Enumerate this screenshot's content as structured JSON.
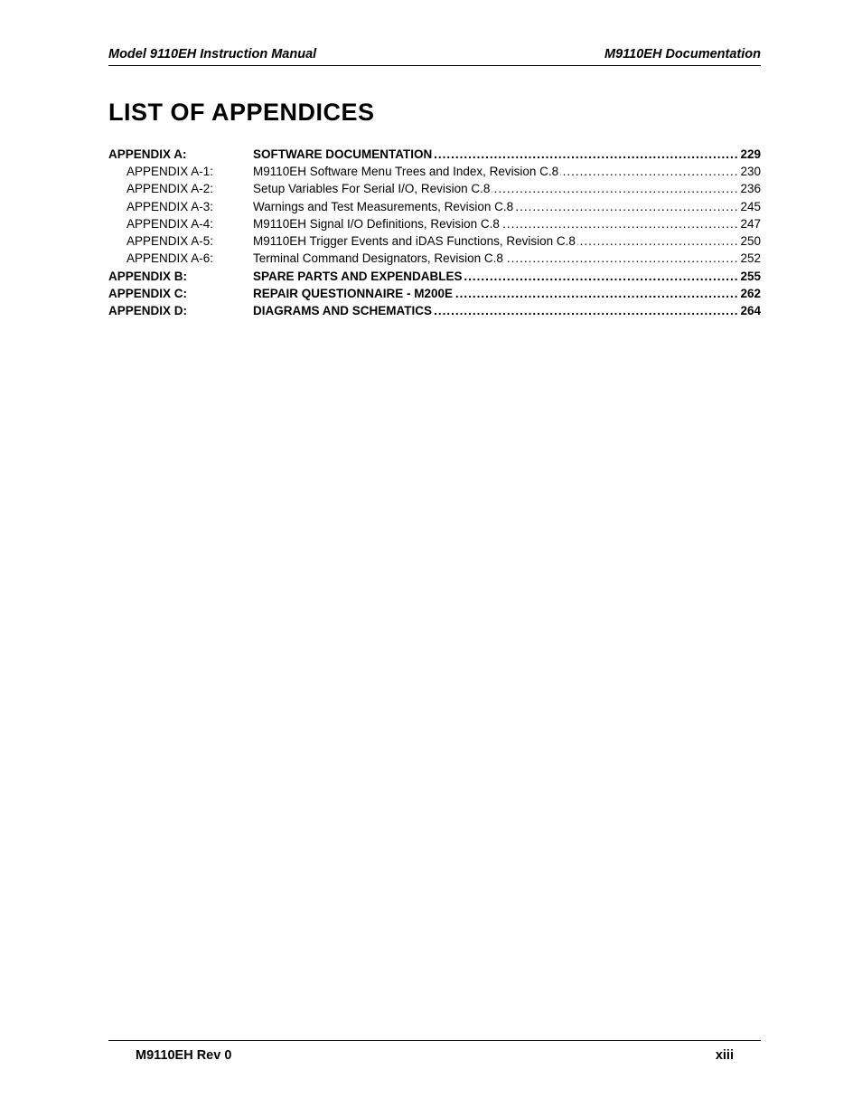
{
  "header": {
    "left": "Model 9110EH Instruction Manual",
    "right": "M9110EH Documentation"
  },
  "title": "LIST OF APPENDICES",
  "toc": [
    {
      "label": "APPENDIX A:",
      "text": "SOFTWARE DOCUMENTATION",
      "page": "229",
      "bold": true,
      "sub": false
    },
    {
      "label": "APPENDIX A-1:",
      "text": "M9110EH Software Menu Trees and Index, Revision C.8",
      "page": "230",
      "bold": false,
      "sub": true
    },
    {
      "label": "APPENDIX A-2:",
      "text": "Setup Variables For Serial I/O, Revision C.8",
      "page": "236",
      "bold": false,
      "sub": true
    },
    {
      "label": "APPENDIX A-3:",
      "text": "Warnings and Test Measurements, Revision C.8",
      "page": "245",
      "bold": false,
      "sub": true
    },
    {
      "label": "APPENDIX A-4:",
      "text": "M9110EH Signal I/O Definitions, Revision C.8",
      "page": "247",
      "bold": false,
      "sub": true
    },
    {
      "label": "APPENDIX A-5:",
      "text": "M9110EH Trigger Events and iDAS Functions, Revision C.8",
      "page": "250",
      "bold": false,
      "sub": true
    },
    {
      "label": "APPENDIX A-6:",
      "text": "Terminal Command Designators, Revision C.8",
      "page": "252",
      "bold": false,
      "sub": true
    },
    {
      "label": "APPENDIX B:",
      "text": "SPARE PARTS AND EXPENDABLES",
      "page": "255",
      "bold": true,
      "sub": false
    },
    {
      "label": "APPENDIX C:",
      "text": "REPAIR QUESTIONNAIRE - M200E",
      "page": "262",
      "bold": true,
      "sub": false
    },
    {
      "label": "APPENDIX D:",
      "text": "DIAGRAMS AND SCHEMATICS",
      "page": "264",
      "bold": true,
      "sub": false
    }
  ],
  "footer": {
    "left": "M9110EH Rev 0",
    "right": "xiii"
  },
  "colors": {
    "text": "#000000",
    "background": "#ffffff",
    "rule": "#000000"
  },
  "typography": {
    "body_family": "Verdana",
    "header_fontsize_pt": 11,
    "title_fontsize_pt": 20,
    "toc_fontsize_pt": 10,
    "footer_fontsize_pt": 11
  }
}
